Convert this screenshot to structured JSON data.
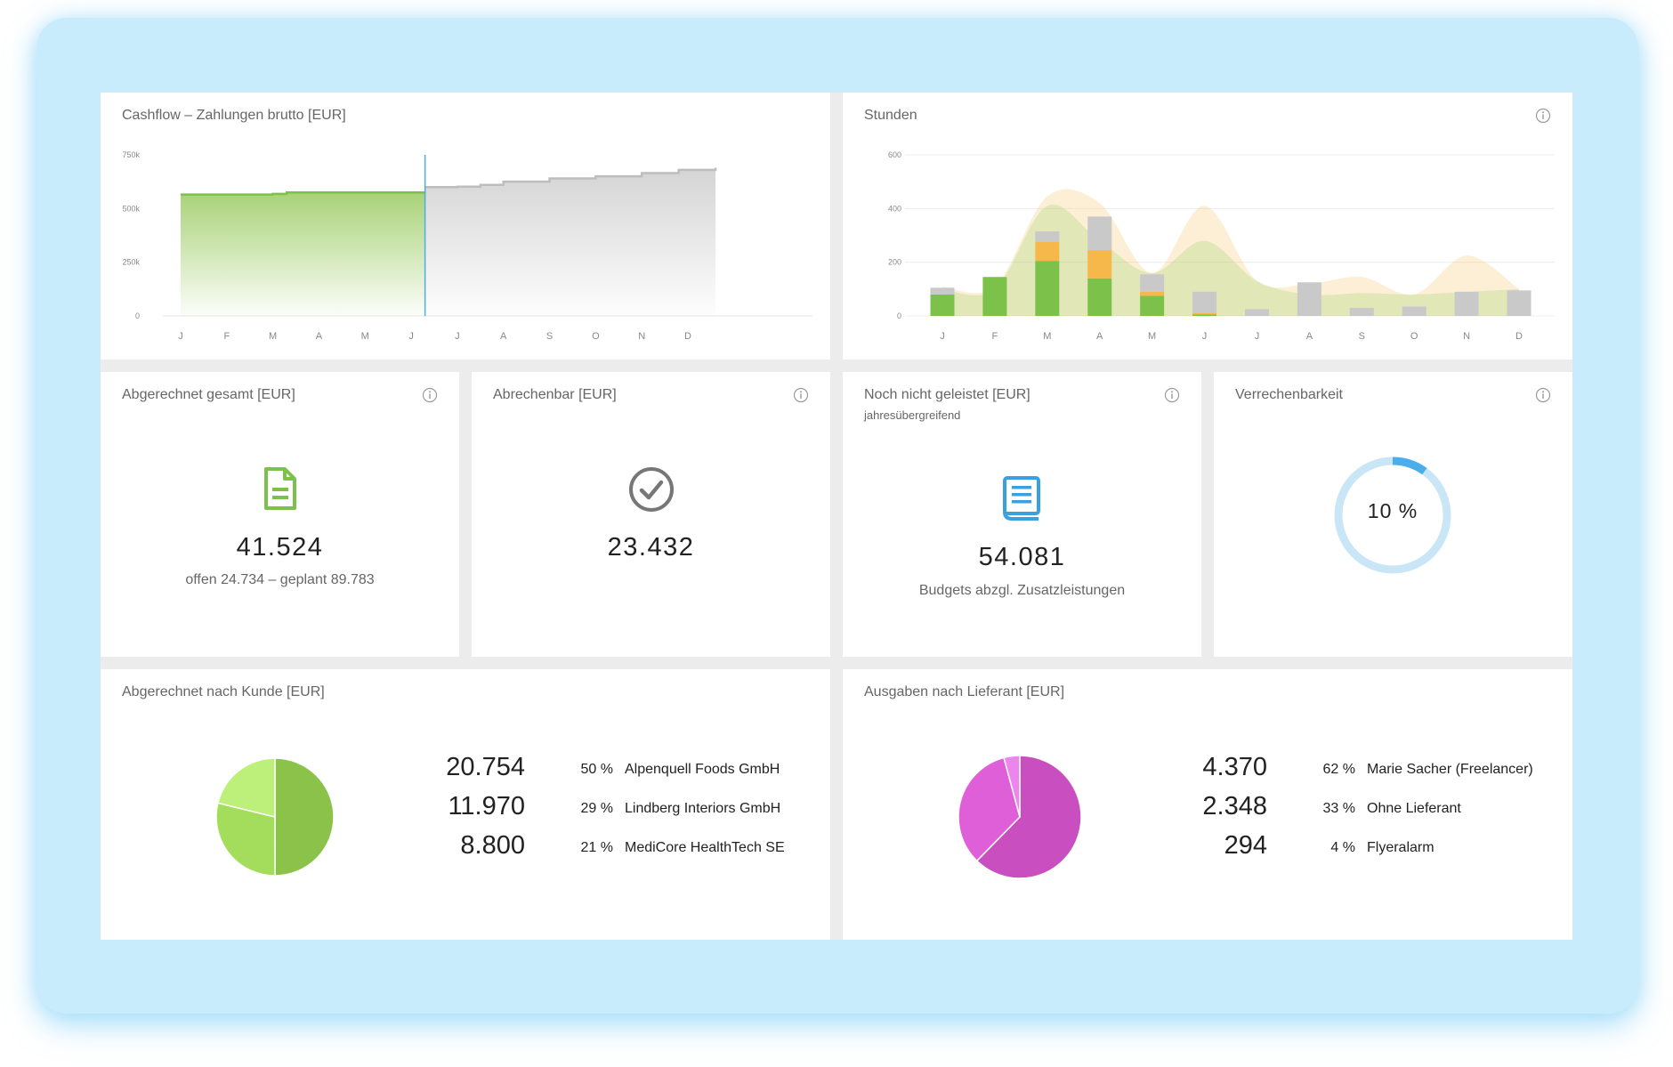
{
  "cashflow": {
    "title": "Cashflow – Zahlungen brutto [EUR]",
    "chart_data": {
      "type": "area",
      "y_ticks": [
        "750k",
        "500k",
        "250k",
        "0"
      ],
      "ylim": [
        0,
        750000
      ],
      "x_ticks": [
        "J",
        "F",
        "M",
        "A",
        "M",
        "J",
        "J",
        "A",
        "S",
        "O",
        "N",
        "D"
      ],
      "series": [
        {
          "values": [
            [
              0,
              565000
            ],
            [
              1,
              565000
            ],
            [
              2,
              568000
            ],
            [
              2.3,
              575000
            ],
            [
              3,
              575000
            ],
            [
              4,
              575000
            ],
            [
              5.3,
              572000
            ]
          ],
          "color": "#7cc24a"
        },
        {
          "values": [
            [
              5.3,
              600000
            ],
            [
              6,
              602000
            ],
            [
              6.5,
              610000
            ],
            [
              7,
              625000
            ],
            [
              8,
              640000
            ],
            [
              9,
              650000
            ],
            [
              10,
              665000
            ],
            [
              10.8,
              680000
            ],
            [
              11.6,
              690000
            ]
          ],
          "color": "#c8c8c8"
        }
      ],
      "divider_at": 5.3,
      "divider_color": "#4aaeea"
    }
  },
  "stunden": {
    "title": "Stunden",
    "chart_data": {
      "type": "bar",
      "stacked": true,
      "categories": [
        "J",
        "F",
        "M",
        "A",
        "M",
        "J",
        "J",
        "A",
        "S",
        "O",
        "N",
        "D"
      ],
      "y_ticks": [
        "600",
        "400",
        "200",
        "0"
      ],
      "ylim": [
        0,
        600
      ],
      "series": [
        {
          "color": "#7cc24a",
          "values": [
            80,
            145,
            205,
            140,
            75,
            5,
            0,
            0,
            0,
            0,
            0,
            0
          ]
        },
        {
          "color": "#f6b84a",
          "values": [
            0,
            0,
            70,
            105,
            15,
            5,
            0,
            0,
            0,
            0,
            0,
            0
          ]
        },
        {
          "color": "#c9c9c9",
          "values": [
            25,
            0,
            40,
            125,
            65,
            80,
            25,
            125,
            30,
            35,
            90,
            95
          ]
        }
      ],
      "area_orange": [
        110,
        110,
        445,
        420,
        160,
        410,
        130,
        120,
        145,
        80,
        225,
        100
      ],
      "area_green": [
        100,
        100,
        410,
        280,
        160,
        280,
        130,
        80,
        85,
        80,
        90,
        100
      ]
    }
  },
  "abgerechnet": {
    "title": "Abgerechnet gesamt [EUR]",
    "value": "41.524",
    "sub": "offen 24.734 – geplant 89.783",
    "icon": "document-icon",
    "icon_color": "#7cc24a"
  },
  "abrechenbar": {
    "title": "Abrechenbar [EUR]",
    "value": "23.432",
    "icon": "check-circle-icon",
    "icon_color": "#777777"
  },
  "noch_nicht": {
    "title": "Noch nicht geleistet [EUR]",
    "subtitle": "jahresübergreifend",
    "value": "54.081",
    "sub": "Budgets abzgl. Zusatzleistungen",
    "icon": "book-icon",
    "icon_color": "#3aa0e0"
  },
  "verrechenbarkeit": {
    "title": "Verrechenbarkeit",
    "value": "10 %",
    "fraction": 0.1,
    "ring_color": "#c9e6f7",
    "fill_color": "#4aaeea"
  },
  "nach_kunde": {
    "title": "Abgerechnet nach Kunde [EUR]",
    "chart_data": {
      "type": "pie",
      "rows": [
        {
          "amount": "20.754",
          "percent": "50 %",
          "name": "Alpenquell Foods GmbH",
          "value": 20754,
          "color": "#8bc34a"
        },
        {
          "amount": "11.970",
          "percent": "29 %",
          "name": "Lindberg Interiors GmbH",
          "value": 11970,
          "color": "#a4dc5c"
        },
        {
          "amount": "8.800",
          "percent": "21 %",
          "name": "MediCore HealthTech SE",
          "value": 8800,
          "color": "#bdf07a"
        }
      ]
    }
  },
  "nach_lieferant": {
    "title": "Ausgaben nach Lieferant [EUR]",
    "chart_data": {
      "type": "pie",
      "rows": [
        {
          "amount": "4.370",
          "percent": "62 %",
          "name": "Marie Sacher (Freelancer)",
          "value": 4370,
          "color": "#c94fc0"
        },
        {
          "amount": "2.348",
          "percent": "33 %",
          "name": "Ohne Lieferant",
          "value": 2348,
          "color": "#df5fd8"
        },
        {
          "amount": "294",
          "percent": "4 %",
          "name": "Flyeralarm",
          "value": 294,
          "color": "#ec86ee"
        }
      ]
    }
  }
}
